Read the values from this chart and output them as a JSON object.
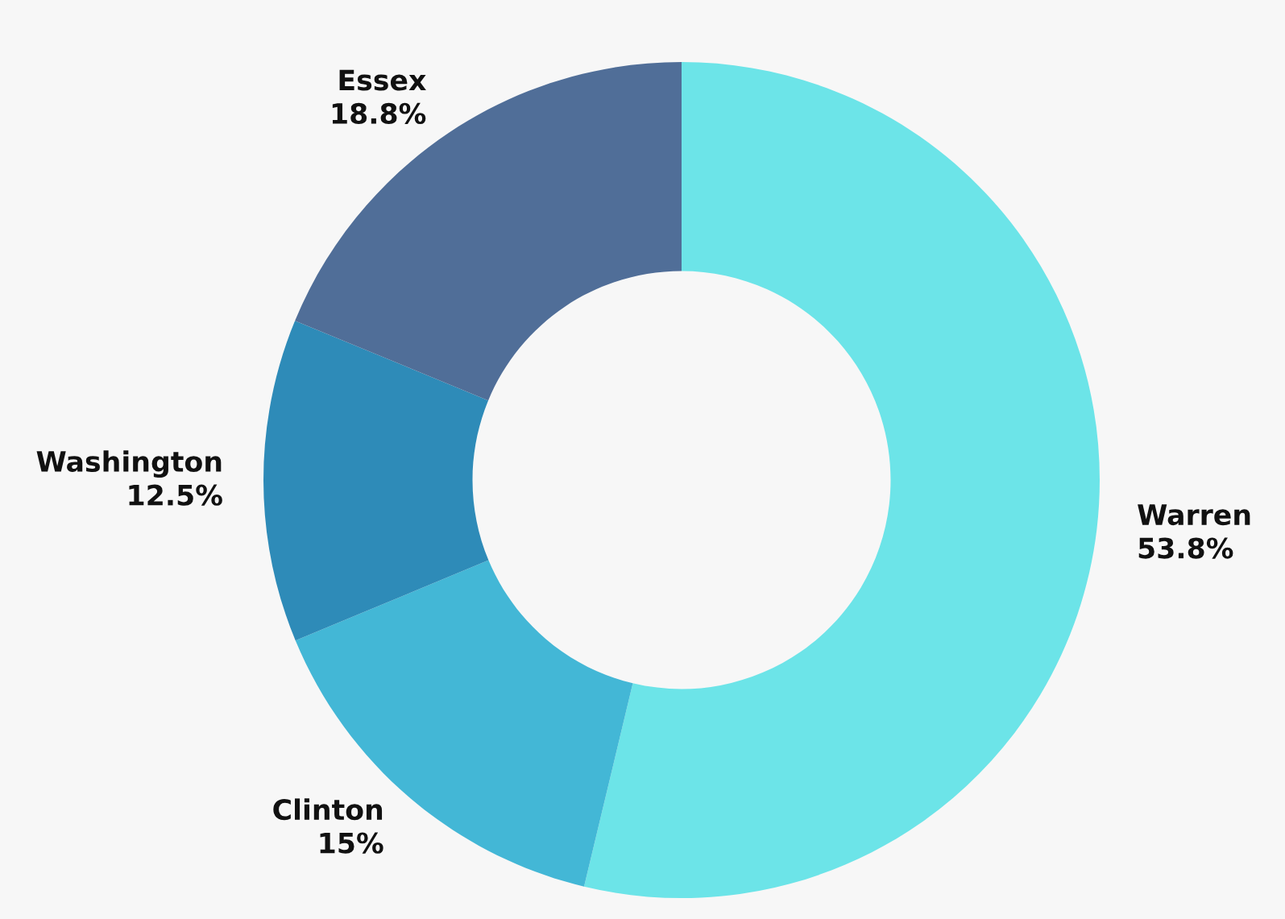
{
  "chart_data": {
    "type": "donut",
    "categories": [
      "Warren",
      "Clinton",
      "Washington",
      "Essex"
    ],
    "values": [
      53.8,
      15,
      12.5,
      18.8
    ],
    "colors": [
      "#6ce4e8",
      "#43b7d6",
      "#2e8bb8",
      "#506e98"
    ],
    "value_labels": [
      "53.8%",
      "15%",
      "12.5%",
      "18.8%"
    ],
    "legend": false
  }
}
